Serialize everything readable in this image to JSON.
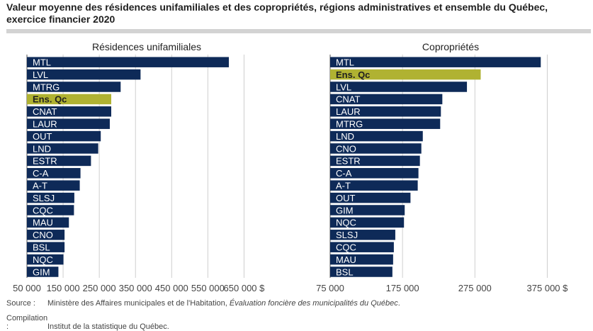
{
  "title": "Valeur moyenne des résidences unifamiliales et des copropriétés, régions administratives et ensemble du Québec, exercice financier 2020",
  "colors": {
    "bar": "#0e2a58",
    "highlight": "#b0b232",
    "grid": "#cfcfcf"
  },
  "chart_data": [
    {
      "type": "bar",
      "orientation": "horizontal",
      "title": "Résidences unifamiliales",
      "categories": [
        "MTL",
        "LVL",
        "MTRG",
        "Ens. Qc",
        "CNAT",
        "LAUR",
        "OUT",
        "LND",
        "ESTR",
        "C-A",
        "A-T",
        "SLSJ",
        "CQC",
        "MAU",
        "CNO",
        "BSL",
        "NQC",
        "GIM"
      ],
      "values": [
        608000,
        364000,
        309000,
        283000,
        283000,
        279000,
        254000,
        247000,
        227000,
        198000,
        196000,
        181000,
        180000,
        166000,
        154000,
        154000,
        151000,
        137000
      ],
      "highlight": "Ens. Qc",
      "xlim": [
        50000,
        700000
      ],
      "xticks": [
        50000,
        150000,
        250000,
        350000,
        450000,
        550000,
        650000
      ],
      "xtick_labels": [
        "50 000",
        "150 000",
        "250 000",
        "350 000",
        "450 000",
        "550 000",
        "650 000 $"
      ],
      "grid": true
    },
    {
      "type": "bar",
      "orientation": "horizontal",
      "title": "Copropriétés",
      "categories": [
        "MTL",
        "Ens. Qc",
        "LVL",
        "CNAT",
        "LAUR",
        "MTRG",
        "LND",
        "CNO",
        "ESTR",
        "C-A",
        "A-T",
        "OUT",
        "GIM",
        "NQC",
        "SLSJ",
        "CQC",
        "MAU",
        "BSL"
      ],
      "values": [
        366000,
        283000,
        264000,
        230000,
        228000,
        227000,
        203000,
        201000,
        199000,
        197000,
        196000,
        186000,
        178000,
        177000,
        165000,
        163000,
        162000,
        161000
      ],
      "highlight": "Ens. Qc",
      "xlim": [
        75000,
        400000
      ],
      "xticks": [
        75000,
        175000,
        275000,
        375000
      ],
      "xtick_labels": [
        "75 000",
        "175 000",
        "275 000",
        "375 000 $"
      ],
      "grid": true
    }
  ],
  "footer": {
    "source_label": "Source :",
    "source_text": "Ministère des Affaires municipales et de l'Habitation, ",
    "source_title": "Évaluation foncière des municipalités du Québec",
    "source_end": ".",
    "compilation_label": "Compilation :",
    "compilation_text": "Institut de la statistique du Québec."
  }
}
